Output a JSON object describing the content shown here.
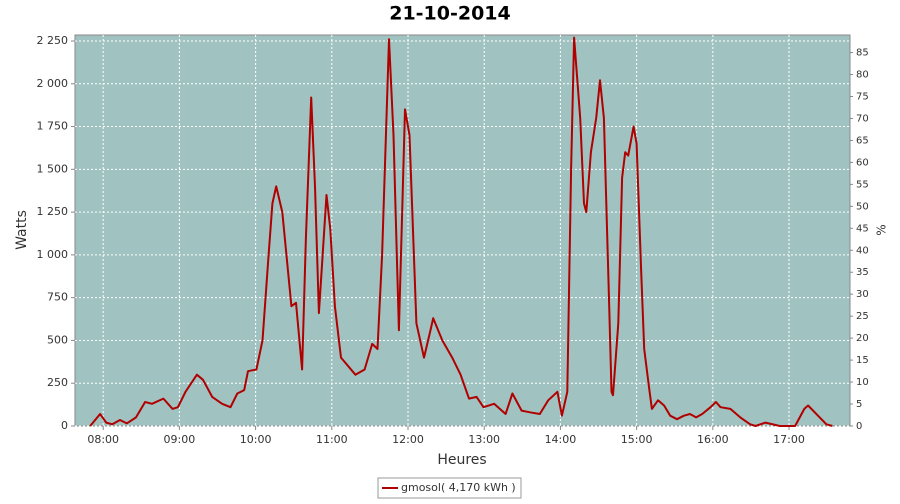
{
  "chart_data": {
    "type": "line",
    "title": "21-10-2014",
    "x_label": "Heures",
    "y_label": "Watts",
    "y2_label": "%",
    "x": [
      7.83,
      7.96,
      8.04,
      8.12,
      8.22,
      8.31,
      8.43,
      8.55,
      8.64,
      8.79,
      8.91,
      8.98,
      9.08,
      9.23,
      9.31,
      9.43,
      9.56,
      9.67,
      9.76,
      9.85,
      9.9,
      10.01,
      10.09,
      10.17,
      10.22,
      10.27,
      10.35,
      10.47,
      10.53,
      10.61,
      10.66,
      10.73,
      10.78,
      10.83,
      10.93,
      10.98,
      11.04,
      11.12,
      11.31,
      11.43,
      11.53,
      11.6,
      11.66,
      11.75,
      11.81,
      11.88,
      11.96,
      12.02,
      12.11,
      12.21,
      12.29,
      12.33,
      12.45,
      12.58,
      12.69,
      12.8,
      12.9,
      12.99,
      13.13,
      13.28,
      13.37,
      13.49,
      13.6,
      13.73,
      13.84,
      13.96,
      14.02,
      14.09,
      14.14,
      14.18,
      14.26,
      14.31,
      14.34,
      14.4,
      14.47,
      14.52,
      14.57,
      14.64,
      14.67,
      14.69,
      14.76,
      14.81,
      14.85,
      14.89,
      14.96,
      15.0,
      15.06,
      15.1,
      15.17,
      15.2,
      15.28,
      15.36,
      15.44,
      15.53,
      15.62,
      15.7,
      15.78,
      15.86,
      15.97,
      16.04,
      16.1,
      16.23,
      16.36,
      16.49,
      16.56,
      16.69,
      16.88,
      17.08,
      17.2,
      17.25,
      17.38,
      17.49,
      17.57
    ],
    "series": [
      {
        "name": "gmosol( 4,170 kWh )",
        "color": "#b00000",
        "values": [
          0,
          70,
          20,
          10,
          35,
          15,
          50,
          140,
          130,
          160,
          100,
          110,
          200,
          300,
          270,
          170,
          130,
          110,
          190,
          210,
          320,
          330,
          500,
          1000,
          1300,
          1400,
          1250,
          700,
          720,
          330,
          1100,
          1920,
          1400,
          660,
          1350,
          1150,
          700,
          400,
          300,
          330,
          480,
          450,
          1000,
          2260,
          1700,
          560,
          1850,
          1700,
          600,
          400,
          550,
          630,
          500,
          400,
          300,
          160,
          170,
          110,
          130,
          70,
          190,
          90,
          80,
          70,
          150,
          200,
          60,
          200,
          1500,
          2270,
          1800,
          1300,
          1250,
          1600,
          1800,
          2020,
          1800,
          700,
          200,
          180,
          600,
          1450,
          1600,
          1580,
          1750,
          1650,
          900,
          450,
          200,
          100,
          150,
          120,
          60,
          40,
          60,
          70,
          50,
          70,
          110,
          140,
          110,
          100,
          50,
          10,
          0,
          20,
          0,
          0,
          100,
          120,
          60,
          10,
          0
        ]
      }
    ],
    "xlim": [
      7.63,
      17.8
    ],
    "xticks": [
      {
        "value": 8,
        "label": "08:00"
      },
      {
        "value": 9,
        "label": "09:00"
      },
      {
        "value": 10,
        "label": "10:00"
      },
      {
        "value": 11,
        "label": "11:00"
      },
      {
        "value": 12,
        "label": "12:00"
      },
      {
        "value": 13,
        "label": "13:00"
      },
      {
        "value": 14,
        "label": "14:00"
      },
      {
        "value": 15,
        "label": "15:00"
      },
      {
        "value": 16,
        "label": "16:00"
      },
      {
        "value": 17,
        "label": "17:00"
      }
    ],
    "ylim": [
      0,
      2285
    ],
    "yticks": [
      0,
      250,
      500,
      750,
      {
        "value": 1000,
        "label": "1 000"
      },
      {
        "value": 1250,
        "label": "1 250"
      },
      {
        "value": 1500,
        "label": "1 500"
      },
      {
        "value": 1750,
        "label": "1 750"
      },
      {
        "value": 2000,
        "label": "2 000"
      },
      {
        "value": 2250,
        "label": "2 250"
      }
    ],
    "y2lim": [
      0,
      89
    ],
    "y2ticks": [
      0,
      5,
      10,
      15,
      20,
      25,
      30,
      35,
      40,
      45,
      50,
      55,
      60,
      65,
      70,
      75,
      80,
      85
    ],
    "grid": true,
    "background": "#a0c3c2"
  }
}
